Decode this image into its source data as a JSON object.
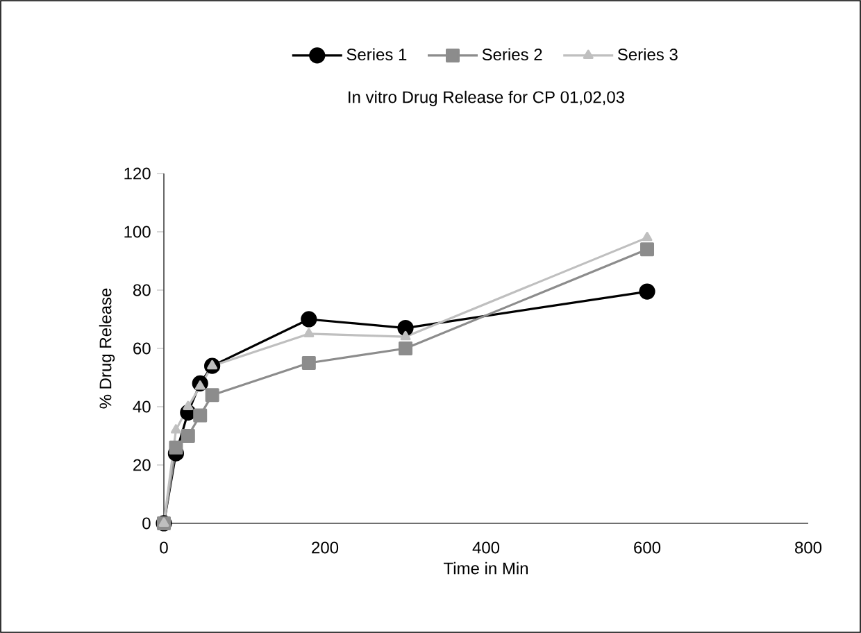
{
  "chart_data": {
    "type": "line",
    "title": "In vitro Drug Release for CP 01,02,03",
    "xlabel": "Time in Min",
    "ylabel": "% Drug Release",
    "xlim": [
      0,
      800
    ],
    "xticks": [
      0,
      200,
      400,
      600,
      800
    ],
    "ylim": [
      0,
      120
    ],
    "yticks": [
      0,
      20,
      40,
      60,
      80,
      100,
      120
    ],
    "grid": false,
    "legend": "top",
    "x": [
      0,
      15,
      30,
      45,
      60,
      180,
      300,
      600
    ],
    "series": [
      {
        "name": "Series 1",
        "color": "#000000",
        "marker": "circle",
        "values": [
          0,
          24,
          38,
          48,
          54,
          70,
          67,
          79.5
        ]
      },
      {
        "name": "Series 2",
        "color": "#8c8c8c",
        "marker": "square",
        "values": [
          0,
          26,
          30,
          37,
          44,
          55,
          60,
          94
        ]
      },
      {
        "name": "Series 3",
        "color": "#bfbfbf",
        "marker": "triangle",
        "values": [
          0,
          32,
          40,
          47,
          54,
          65,
          64,
          98
        ]
      }
    ]
  }
}
